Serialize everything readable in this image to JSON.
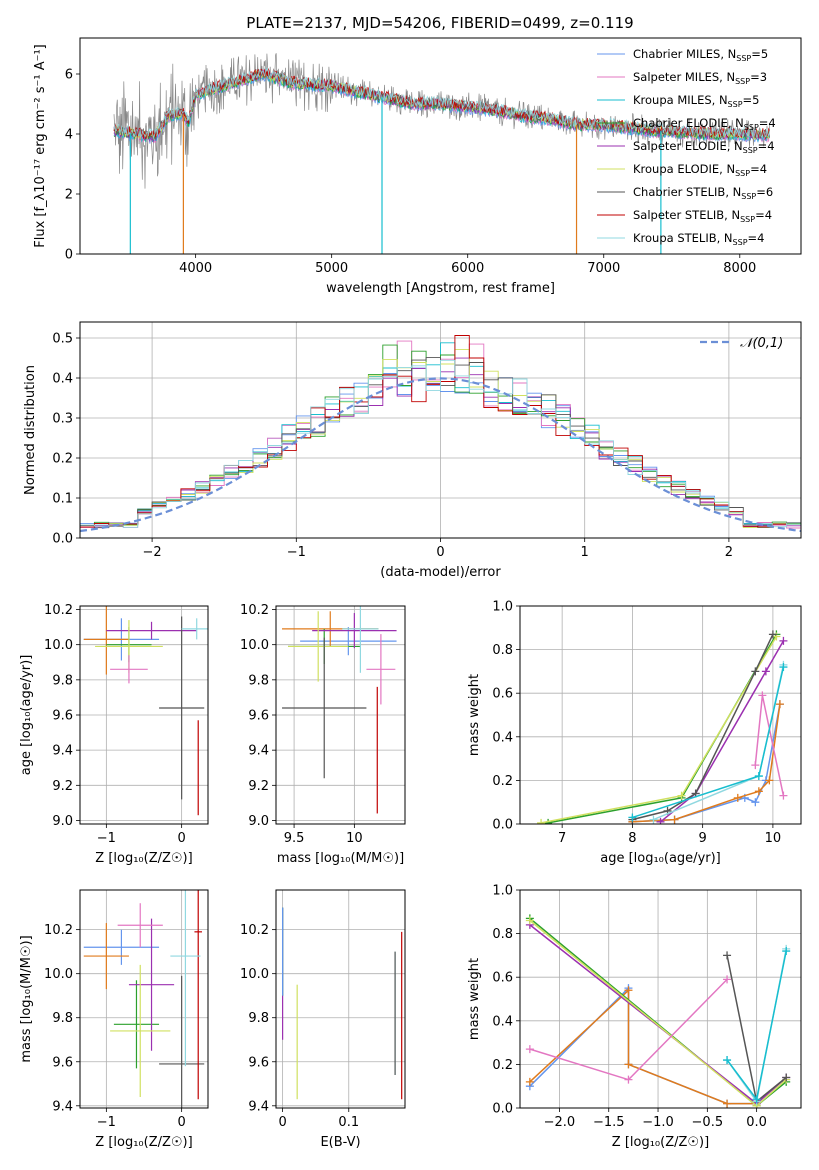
{
  "title": "PLATE=2137, MJD=54206, FIBERID=0499, z=0.119",
  "colors": {
    "Chabrier MILES": "#6495ed",
    "Salpeter MILES": "#e377c2",
    "Kroupa MILES": "#17becf",
    "Chabrier ELODIE": "#2ca02c",
    "Salpeter ELODIE": "#9b30b0",
    "Kroupa ELODIE": "#d0e060",
    "Chabrier STELIB": "#555555",
    "Salpeter STELIB": "#c00000",
    "Kroupa STELIB": "#90d8e0",
    "orange": "#e07b1c",
    "spectrum_data": "#888888",
    "gauss": "#6b8fd6",
    "grid": "#b0b0b0"
  },
  "chart_data": [
    {
      "id": "spectrum",
      "type": "line",
      "xlabel": "wavelength [Angstrom, rest frame]",
      "ylabel": "Flux [f_λ10⁻¹⁷ erg cm⁻² s⁻¹ A⁻¹]",
      "xlim": [
        3150,
        8450
      ],
      "ylim": [
        0,
        7.2
      ],
      "xticks": [
        4000,
        5000,
        6000,
        7000,
        8000
      ],
      "yticks": [
        0,
        2,
        4,
        6
      ],
      "grid": false,
      "legend_position": "upper-right",
      "legend": [
        {
          "label": "Chabrier MILES, N",
          "sub": "SSP",
          "tail": "=5",
          "color": "#6495ed"
        },
        {
          "label": "Salpeter MILES, N",
          "sub": "SSP",
          "tail": "=3",
          "color": "#e377c2"
        },
        {
          "label": "Kroupa MILES, N",
          "sub": "SSP",
          "tail": "=5",
          "color": "#17becf"
        },
        {
          "label": "Chabrier ELODIE, N",
          "sub": "SSP",
          "tail": "=4",
          "color": "#2ca02c"
        },
        {
          "label": "Salpeter ELODIE, N",
          "sub": "SSP",
          "tail": "=4",
          "color": "#9b30b0"
        },
        {
          "label": "Kroupa ELODIE, N",
          "sub": "SSP",
          "tail": "=4",
          "color": "#d0e060"
        },
        {
          "label": "Chabrier STELIB, N",
          "sub": "SSP",
          "tail": "=6",
          "color": "#555555"
        },
        {
          "label": "Salpeter STELIB, N",
          "sub": "SSP",
          "tail": "=4",
          "color": "#c00000"
        },
        {
          "label": "Kroupa STELIB, N",
          "sub": "SSP",
          "tail": "=4",
          "color": "#90d8e0"
        }
      ],
      "continuum_knots": [
        [
          3400,
          4.1
        ],
        [
          3700,
          3.9
        ],
        [
          3800,
          4.6
        ],
        [
          3900,
          4.7
        ],
        [
          3950,
          4.4
        ],
        [
          4000,
          5.3
        ],
        [
          4200,
          5.6
        ],
        [
          4500,
          6.0
        ],
        [
          4700,
          5.7
        ],
        [
          5000,
          5.6
        ],
        [
          5200,
          5.4
        ],
        [
          5400,
          5.2
        ],
        [
          5600,
          5.0
        ],
        [
          5800,
          5.0
        ],
        [
          6000,
          4.9
        ],
        [
          6200,
          4.8
        ],
        [
          6400,
          4.6
        ],
        [
          6600,
          4.5
        ],
        [
          6800,
          4.3
        ],
        [
          7000,
          4.3
        ],
        [
          7200,
          4.2
        ],
        [
          7400,
          4.1
        ],
        [
          7600,
          4.05
        ],
        [
          7800,
          4.0
        ],
        [
          8000,
          4.0
        ],
        [
          8200,
          3.95
        ]
      ],
      "spikes_down": [
        [
          3520,
          0
        ],
        [
          3910,
          0
        ],
        [
          5370,
          0
        ],
        [
          6800,
          0
        ],
        [
          7420,
          0
        ]
      ]
    },
    {
      "id": "residual_histogram",
      "type": "histogram",
      "xlabel": "(data-model)/error",
      "ylabel": "Normed distribution",
      "xlim": [
        -2.5,
        2.5
      ],
      "ylim": [
        0,
        0.54
      ],
      "xticks": [
        -2,
        -1,
        0,
        1,
        2
      ],
      "yticks": [
        0.0,
        0.1,
        0.2,
        0.3,
        0.4,
        0.5
      ],
      "grid": true,
      "legend_position": "upper-right",
      "legend": [
        {
          "label": "𝒩(0,1)",
          "color": "#6b8fd6",
          "style": "dashed"
        }
      ],
      "bin_width": 0.1,
      "n_series": 9
    },
    {
      "id": "age_vs_Z",
      "type": "errorbar",
      "xlabel": "Z [log₁₀(Z/Z☉)]",
      "ylabel": "age  [log₁₀(age/yr)]",
      "xlim": [
        -1.35,
        0.35
      ],
      "ylim": [
        8.98,
        10.22
      ],
      "xticks": [
        -1,
        0
      ],
      "yticks": [
        9.0,
        9.2,
        9.4,
        9.6,
        9.8,
        10.0,
        10.2
      ],
      "grid": true,
      "points": [
        {
          "x": -0.8,
          "xerr": 0.5,
          "y": 10.03,
          "yerr": 0.12,
          "color": "#6495ed"
        },
        {
          "x": -1.0,
          "xerr": 0.3,
          "y": 10.03,
          "yerr": 0.2,
          "color": "#e07b1c"
        },
        {
          "x": -0.7,
          "xerr": 0.3,
          "y": 10.0,
          "yerr": 0.1,
          "color": "#2ca02c"
        },
        {
          "x": -0.4,
          "xerr": 0.6,
          "y": 10.08,
          "yerr": 0.05,
          "color": "#9b30b0"
        },
        {
          "x": -0.7,
          "xerr": 0.45,
          "y": 9.99,
          "yerr": 0.15,
          "color": "#d0e060"
        },
        {
          "x": -0.7,
          "xerr": 0.25,
          "y": 9.86,
          "yerr": 0.08,
          "color": "#e377c2"
        },
        {
          "x": 0.0,
          "xerr": 0.3,
          "y": 9.64,
          "yerr": 0.52,
          "color": "#555555"
        },
        {
          "x": 0.22,
          "xerr": 0.0,
          "y": 9.3,
          "yerr": 0.27,
          "color": "#c00000"
        },
        {
          "x": 0.2,
          "xerr": 0.2,
          "y": 10.09,
          "yerr": 0.06,
          "color": "#90d8e0"
        }
      ]
    },
    {
      "id": "age_vs_mass",
      "type": "errorbar",
      "xlabel": "mass [log₁₀(M/M☉)]",
      "ylabel": "",
      "xlim": [
        9.35,
        10.42
      ],
      "ylim": [
        8.98,
        10.22
      ],
      "xticks": [
        9.5,
        10.0
      ],
      "yticks": [
        9.0,
        9.2,
        9.4,
        9.6,
        9.8,
        10.0,
        10.2
      ],
      "grid": true,
      "points": [
        {
          "x": 9.95,
          "xerr": 0.4,
          "y": 10.02,
          "yerr": 0.08,
          "color": "#6495ed"
        },
        {
          "x": 9.8,
          "xerr": 0.4,
          "y": 10.09,
          "yerr": 0.1,
          "color": "#e07b1c"
        },
        {
          "x": 9.75,
          "xerr": 0.3,
          "y": 9.99,
          "yerr": 0.1,
          "color": "#2ca02c"
        },
        {
          "x": 10.0,
          "xerr": 0.35,
          "y": 10.08,
          "yerr": 0.1,
          "color": "#9b30b0"
        },
        {
          "x": 9.7,
          "xerr": 0.25,
          "y": 9.99,
          "yerr": 0.2,
          "color": "#d0e060"
        },
        {
          "x": 10.22,
          "xerr": 0.12,
          "y": 9.86,
          "yerr": 0.2,
          "color": "#e377c2"
        },
        {
          "x": 9.75,
          "xerr": 0.35,
          "y": 9.64,
          "yerr": 0.4,
          "color": "#555555"
        },
        {
          "x": 10.19,
          "xerr": 0.0,
          "y": 9.4,
          "yerr": 0.36,
          "color": "#c00000"
        },
        {
          "x": 10.05,
          "xerr": 0.15,
          "y": 10.09,
          "yerr": 0.25,
          "color": "#90d8e0"
        }
      ]
    },
    {
      "id": "mass_weight_vs_age",
      "type": "line",
      "xlabel": "age  [log₁₀(age/yr)]",
      "ylabel": "mass weight",
      "xlim": [
        6.4,
        10.4
      ],
      "ylim": [
        0.0,
        1.0
      ],
      "xticks": [
        7,
        8,
        9,
        10
      ],
      "yticks": [
        0.0,
        0.2,
        0.4,
        0.6,
        0.8,
        1.0
      ],
      "grid": true,
      "series": [
        {
          "color": "#6495ed",
          "x": [
            8.0,
            8.6,
            9.6,
            9.75,
            9.9,
            10.1
          ],
          "y": [
            0.01,
            0.02,
            0.12,
            0.1,
            0.2,
            0.55
          ]
        },
        {
          "color": "#e07b1c",
          "x": [
            8.0,
            8.6,
            9.5,
            9.8,
            9.95,
            10.1
          ],
          "y": [
            0.01,
            0.02,
            0.12,
            0.15,
            0.2,
            0.55
          ]
        },
        {
          "color": "#2ca02c",
          "x": [
            6.8,
            8.7,
            10.05
          ],
          "y": [
            0.005,
            0.12,
            0.87
          ]
        },
        {
          "color": "#9b30b0",
          "x": [
            8.4,
            8.9,
            9.9,
            10.15
          ],
          "y": [
            0.01,
            0.14,
            0.7,
            0.84
          ]
        },
        {
          "color": "#d0e060",
          "x": [
            6.7,
            8.7,
            10.05
          ],
          "y": [
            0.005,
            0.13,
            0.86
          ]
        },
        {
          "color": "#e377c2",
          "x": [
            9.75,
            9.85,
            10.15
          ],
          "y": [
            0.27,
            0.59,
            0.13
          ]
        },
        {
          "color": "#555555",
          "x": [
            8.0,
            8.5,
            8.9,
            9.75,
            10.0
          ],
          "y": [
            0.02,
            0.06,
            0.14,
            0.7,
            0.87
          ]
        },
        {
          "color": "#90d8e0",
          "x": [
            8.3,
            9.8,
            10.15
          ],
          "y": [
            0.02,
            0.22,
            0.73
          ]
        },
        {
          "color": "#17becf",
          "x": [
            8.0,
            9.8,
            10.15
          ],
          "y": [
            0.03,
            0.22,
            0.72
          ]
        }
      ]
    },
    {
      "id": "mass_vs_Z",
      "type": "errorbar",
      "xlabel": "Z [log₁₀(Z/Z☉)]",
      "ylabel": "mass [log₁₀(M/M☉)]",
      "xlim": [
        -1.35,
        0.35
      ],
      "ylim": [
        9.39,
        10.38
      ],
      "xticks": [
        -1,
        0
      ],
      "yticks": [
        9.4,
        9.6,
        9.8,
        10.0,
        10.2
      ],
      "grid": true,
      "points": [
        {
          "x": -0.8,
          "xerr": 0.5,
          "y": 10.12,
          "yerr": 0.08,
          "color": "#6495ed"
        },
        {
          "x": -1.0,
          "xerr": 0.3,
          "y": 10.08,
          "yerr": 0.15,
          "color": "#e07b1c"
        },
        {
          "x": -0.6,
          "xerr": 0.3,
          "y": 9.77,
          "yerr": 0.2,
          "color": "#2ca02c"
        },
        {
          "x": -0.4,
          "xerr": 0.3,
          "y": 9.95,
          "yerr": 0.3,
          "color": "#9b30b0"
        },
        {
          "x": -0.55,
          "xerr": 0.4,
          "y": 9.74,
          "yerr": 0.3,
          "color": "#d0e060"
        },
        {
          "x": -0.55,
          "xerr": 0.3,
          "y": 10.22,
          "yerr": 0.1,
          "color": "#e377c2"
        },
        {
          "x": 0.0,
          "xerr": 0.3,
          "y": 9.59,
          "yerr": 0.4,
          "color": "#555555"
        },
        {
          "x": 0.22,
          "xerr": 0.05,
          "y": 10.19,
          "yerr": 0.76,
          "color": "#c00000"
        },
        {
          "x": 0.05,
          "xerr": 0.2,
          "y": 10.08,
          "yerr": 0.5,
          "color": "#90d8e0"
        }
      ]
    },
    {
      "id": "mass_vs_ebv",
      "type": "errorbar",
      "xlabel": "E(B-V)",
      "ylabel": "",
      "xlim": [
        -0.01,
        0.185
      ],
      "ylim": [
        9.39,
        10.38
      ],
      "xticks": [
        0.0,
        0.1
      ],
      "yticks": [
        9.4,
        9.6,
        9.8,
        10.0,
        10.2
      ],
      "grid": true,
      "points": [
        {
          "x": 0.0,
          "xerr": 0.0,
          "y": 10.0,
          "yerr": 0.3,
          "color": "#9b30b0"
        },
        {
          "x": 0.0,
          "xerr": 0.0,
          "y": 10.1,
          "yerr": 0.2,
          "color": "#2ca02c"
        },
        {
          "x": 0.0,
          "xerr": 0.0,
          "y": 10.1,
          "yerr": 0.2,
          "color": "#6495ed"
        },
        {
          "x": 0.022,
          "xerr": 0.0,
          "y": 9.69,
          "yerr": 0.26,
          "color": "#d0e060"
        },
        {
          "x": 0.17,
          "xerr": 0.0,
          "y": 9.82,
          "yerr": 0.28,
          "color": "#90d8e0"
        },
        {
          "x": 0.17,
          "xerr": 0.0,
          "y": 9.82,
          "yerr": 0.28,
          "color": "#555555"
        },
        {
          "x": 0.18,
          "xerr": 0.0,
          "y": 9.81,
          "yerr": 0.38,
          "color": "#c00000"
        }
      ]
    },
    {
      "id": "mass_weight_vs_Z",
      "type": "line",
      "xlabel": "Z [log₁₀(Z/Z☉)]",
      "ylabel": "mass weight",
      "xlim": [
        -2.4,
        0.45
      ],
      "ylim": [
        0.0,
        1.0
      ],
      "xticks": [
        -2.0,
        -1.5,
        -1.0,
        -0.5,
        0.0
      ],
      "yticks": [
        0.0,
        0.2,
        0.4,
        0.6,
        0.8,
        1.0
      ],
      "grid": true,
      "series": [
        {
          "color": "#6495ed",
          "x": [
            -2.3,
            -1.3,
            -1.3,
            -0.3,
            0.0
          ],
          "y": [
            0.1,
            0.55,
            0.2,
            0.02,
            0.02
          ]
        },
        {
          "color": "#e07b1c",
          "x": [
            -2.3,
            -1.3,
            -1.3,
            -0.3,
            0.0
          ],
          "y": [
            0.12,
            0.54,
            0.2,
            0.02,
            0.02
          ]
        },
        {
          "color": "#2ca02c",
          "x": [
            -2.3,
            0.0,
            0.3
          ],
          "y": [
            0.87,
            0.01,
            0.12
          ]
        },
        {
          "color": "#9b30b0",
          "x": [
            -2.3,
            0.0,
            0.3
          ],
          "y": [
            0.84,
            0.02,
            0.14
          ]
        },
        {
          "color": "#d0e060",
          "x": [
            -2.3,
            0.0,
            0.3
          ],
          "y": [
            0.86,
            0.01,
            0.13
          ]
        },
        {
          "color": "#e377c2",
          "x": [
            -2.3,
            -1.3,
            -0.3
          ],
          "y": [
            0.27,
            0.13,
            0.59
          ]
        },
        {
          "color": "#555555",
          "x": [
            -0.3,
            0.0,
            0.3
          ],
          "y": [
            0.7,
            0.03,
            0.14
          ]
        },
        {
          "color": "#90d8e0",
          "x": [
            -0.3,
            0.0,
            0.3
          ],
          "y": [
            0.22,
            0.03,
            0.73
          ]
        },
        {
          "color": "#17becf",
          "x": [
            -0.3,
            0.0,
            0.3
          ],
          "y": [
            0.22,
            0.04,
            0.72
          ]
        }
      ]
    }
  ]
}
